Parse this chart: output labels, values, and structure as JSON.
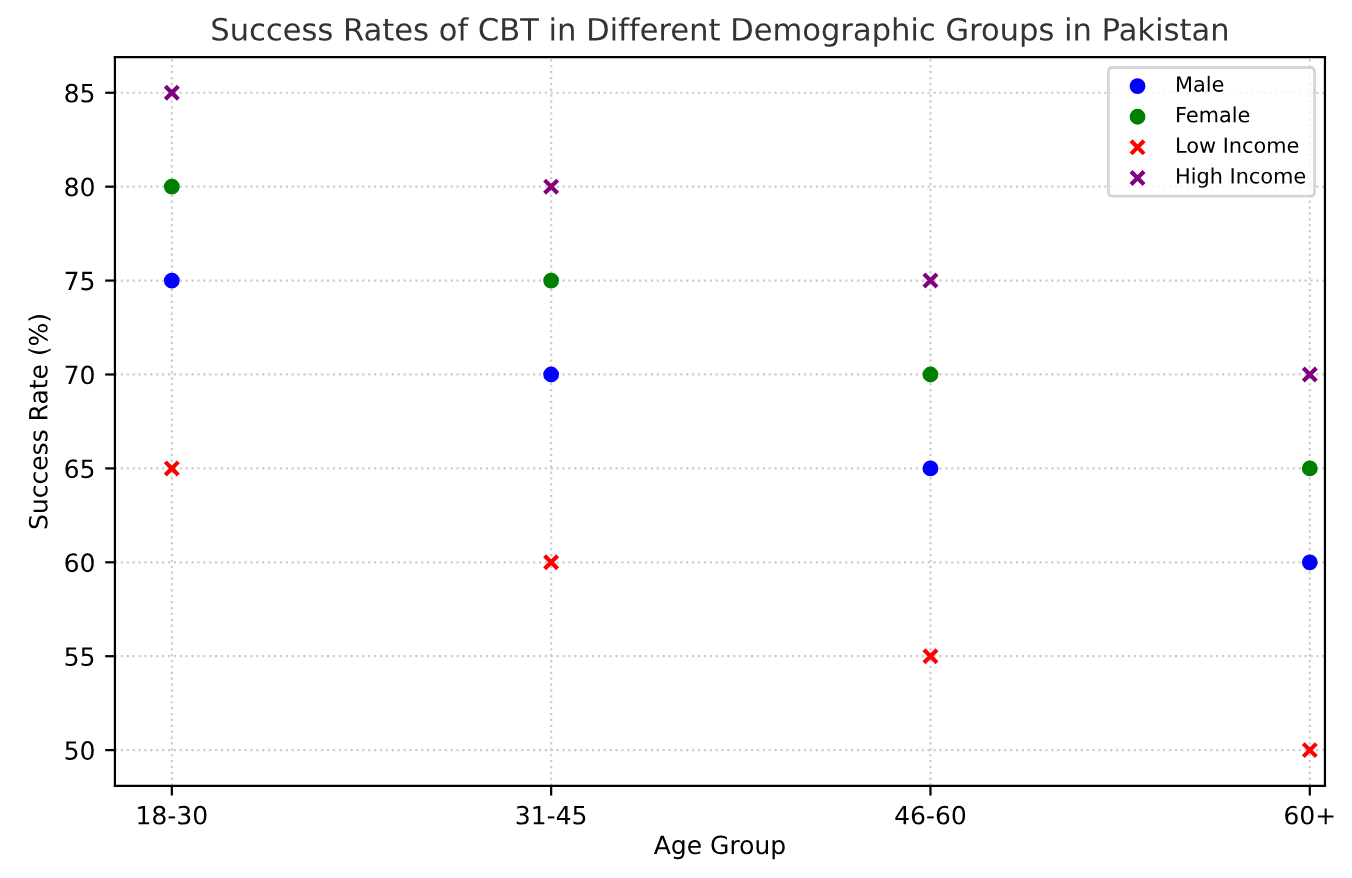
{
  "chart_data": {
    "type": "scatter",
    "title": "Success Rates of CBT in Different Demographic Groups in Pakistan",
    "xlabel": "Age Group",
    "ylabel": "Success Rate (%)",
    "categories": [
      "18-30",
      "31-45",
      "46-60",
      "60+"
    ],
    "series": [
      {
        "name": "Male",
        "color": "#0000ff",
        "marker": "circle",
        "values": [
          75,
          70,
          65,
          60
        ]
      },
      {
        "name": "Female",
        "color": "#008000",
        "marker": "circle",
        "values": [
          80,
          75,
          70,
          65
        ]
      },
      {
        "name": "Low Income",
        "color": "#ff0000",
        "marker": "cross",
        "values": [
          65,
          60,
          55,
          50
        ]
      },
      {
        "name": "High Income",
        "color": "#800080",
        "marker": "cross",
        "values": [
          85,
          80,
          75,
          70
        ]
      }
    ],
    "ylim": [
      48.1,
      86.9
    ],
    "yticks": [
      50,
      55,
      60,
      65,
      70,
      75,
      80,
      85
    ],
    "grid": true,
    "legend": "top right"
  }
}
